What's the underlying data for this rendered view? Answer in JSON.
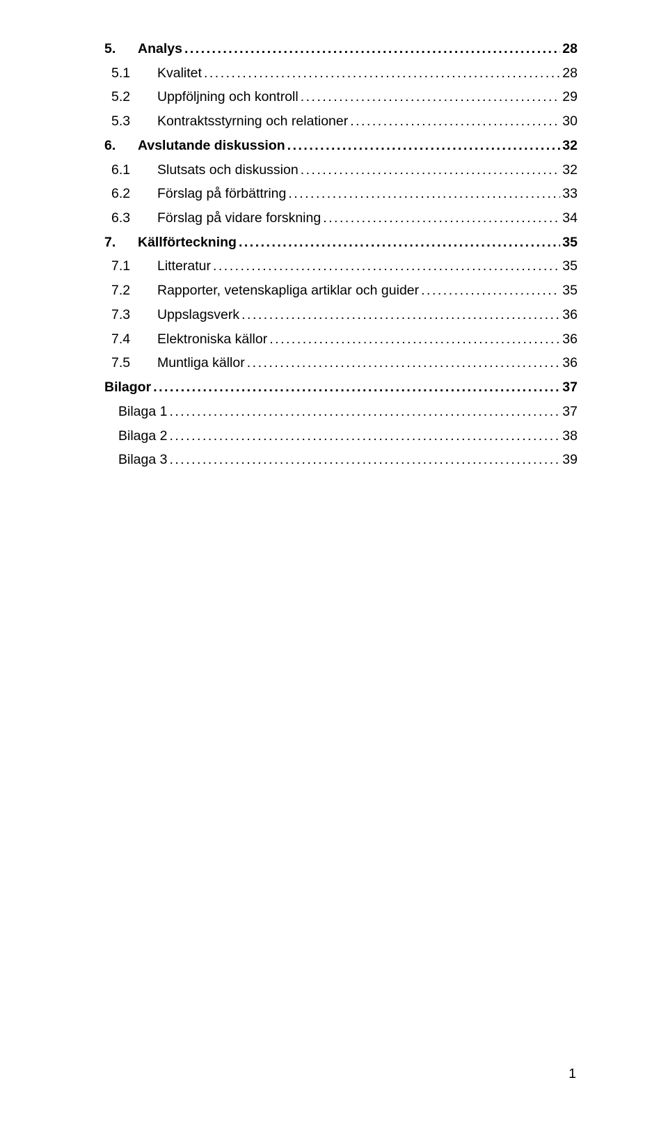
{
  "colors": {
    "text": "#000000",
    "background": "#ffffff"
  },
  "typography": {
    "font_family": "Verdana, sans-serif",
    "body_size_pt": 15,
    "line_height": 1.55
  },
  "page_number": "1",
  "toc": [
    {
      "level": 1,
      "num": "5.",
      "title": "Analys",
      "page": "28",
      "bold": true
    },
    {
      "level": 2,
      "num": "5.1",
      "title": "Kvalitet",
      "page": "28",
      "bold": false
    },
    {
      "level": 2,
      "num": "5.2",
      "title": "Uppföljning och kontroll",
      "page": "29",
      "bold": false
    },
    {
      "level": 2,
      "num": "5.3",
      "title": "Kontraktsstyrning och relationer",
      "page": "30",
      "bold": false
    },
    {
      "level": 1,
      "num": "6.",
      "title": "Avslutande diskussion",
      "page": "32",
      "bold": true
    },
    {
      "level": 2,
      "num": "6.1",
      "title": "Slutsats och diskussion",
      "page": "32",
      "bold": false
    },
    {
      "level": 2,
      "num": "6.2",
      "title": "Förslag på förbättring",
      "page": "33",
      "bold": false
    },
    {
      "level": 2,
      "num": "6.3",
      "title": "Förslag på vidare forskning",
      "page": "34",
      "bold": false
    },
    {
      "level": 1,
      "num": "7.",
      "title": "Källförteckning",
      "page": "35",
      "bold": true
    },
    {
      "level": 2,
      "num": "7.1",
      "title": "Litteratur",
      "page": "35",
      "bold": false
    },
    {
      "level": 2,
      "num": "7.2",
      "title": "Rapporter, vetenskapliga artiklar och guider",
      "page": "35",
      "bold": false
    },
    {
      "level": 2,
      "num": "7.3",
      "title": "Uppslagsverk",
      "page": "36",
      "bold": false
    },
    {
      "level": 2,
      "num": "7.4",
      "title": "Elektroniska källor",
      "page": "36",
      "bold": false
    },
    {
      "level": 2,
      "num": "7.5",
      "title": "Muntliga källor",
      "page": "36",
      "bold": false
    },
    {
      "level": 1,
      "num": "",
      "title": "Bilagor",
      "page": "37",
      "bold": true
    },
    {
      "level": 2,
      "num": "",
      "title": "Bilaga 1",
      "page": "37",
      "bold": false
    },
    {
      "level": 2,
      "num": "",
      "title": "Bilaga 2",
      "page": "38",
      "bold": false
    },
    {
      "level": 2,
      "num": "",
      "title": "Bilaga 3",
      "page": "39",
      "bold": false
    }
  ]
}
